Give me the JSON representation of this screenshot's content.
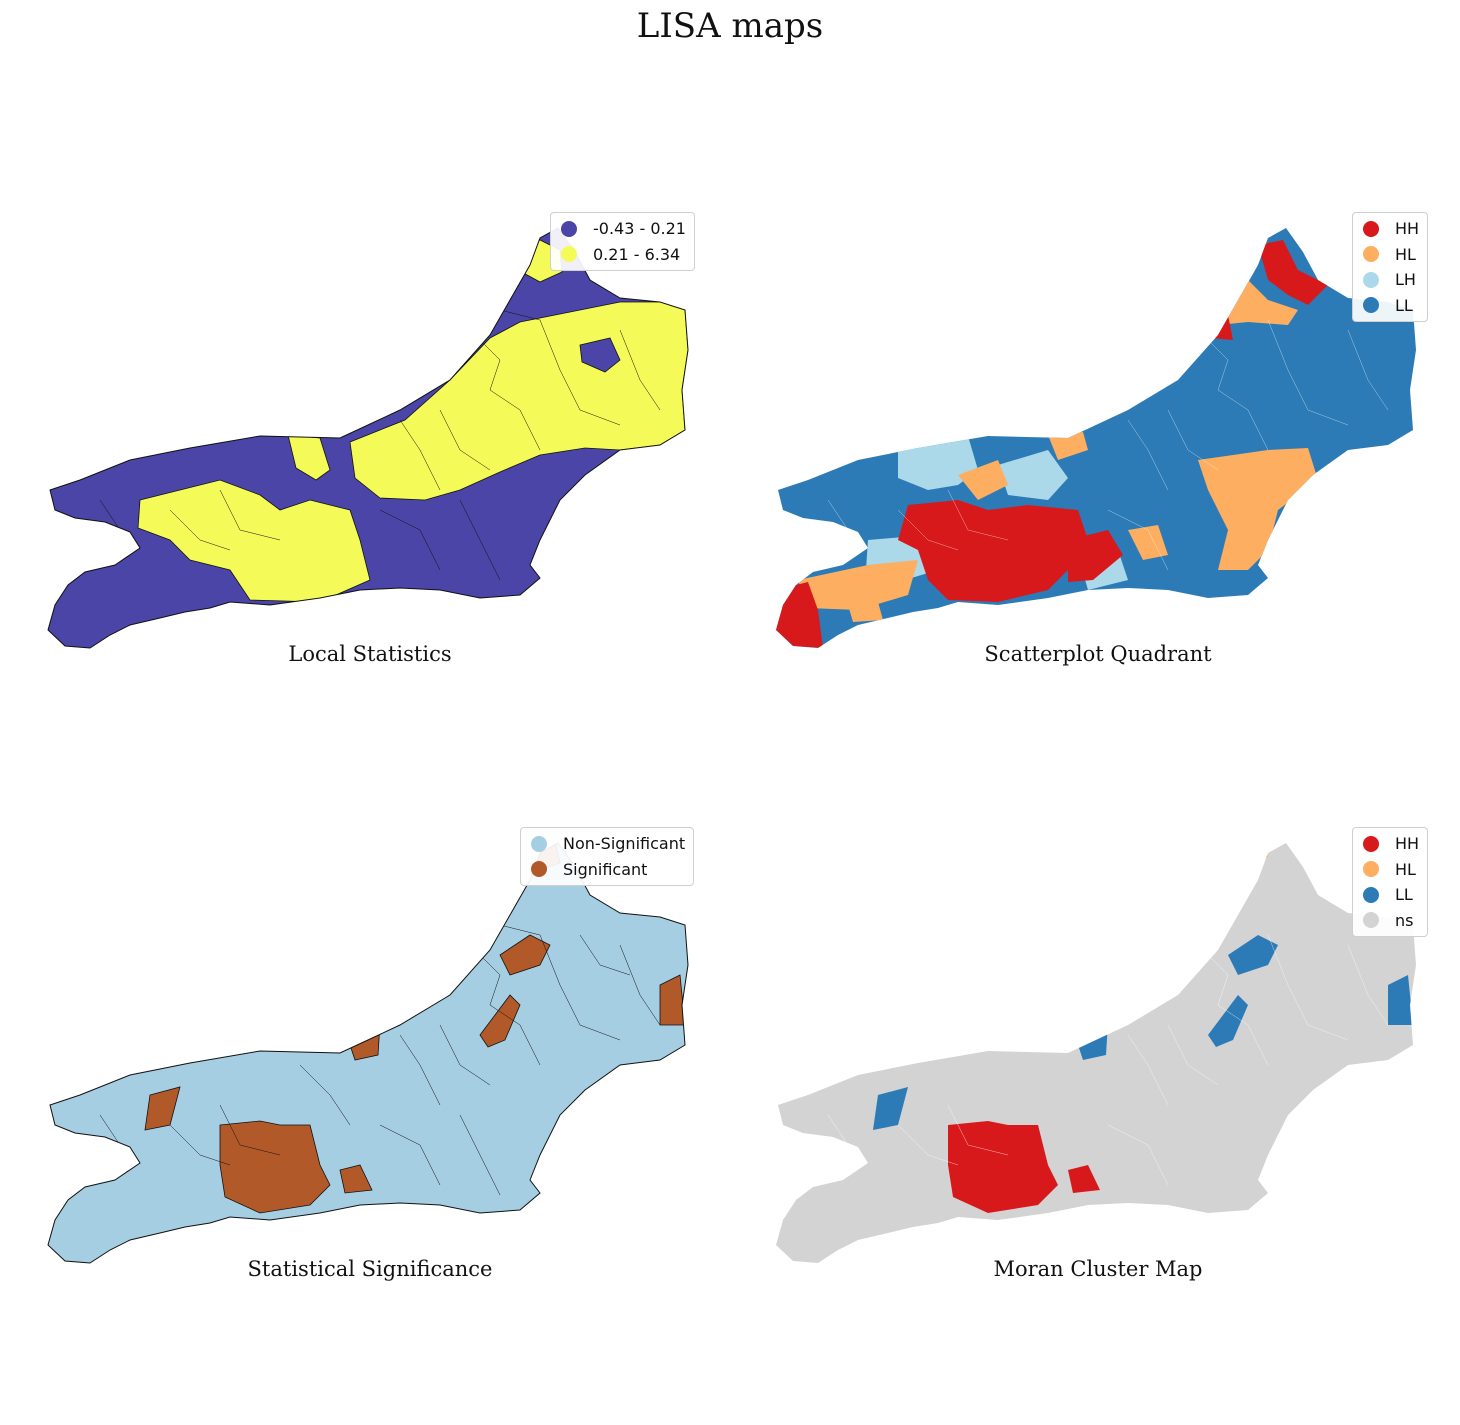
{
  "title": "LISA maps",
  "colors": {
    "ns": "#d3d3d3",
    "hh": "#d7191c",
    "hl": "#fdae61",
    "lh": "#abd9e9",
    "ll": "#2c7bb6",
    "low_stat": "#4a45a6",
    "high_stat": "#f4fa58",
    "non_sig": "#a6cee3",
    "sig": "#b15928"
  },
  "panels": [
    {
      "caption": "Local Statistics",
      "legend": [
        {
          "label": "-0.43 - 0.21",
          "color": "#4a45a6"
        },
        {
          "label": "0.21 - 6.34",
          "color": "#f4fa58"
        }
      ]
    },
    {
      "caption": "Scatterplot Quadrant",
      "legend": [
        {
          "label": "HH",
          "color": "#d7191c"
        },
        {
          "label": "HL",
          "color": "#fdae61"
        },
        {
          "label": "LH",
          "color": "#abd9e9"
        },
        {
          "label": "LL",
          "color": "#2c7bb6"
        }
      ]
    },
    {
      "caption": "Statistical Significance",
      "legend": [
        {
          "label": "Non-Significant",
          "color": "#a6cee3"
        },
        {
          "label": "Significant",
          "color": "#b15928"
        }
      ]
    },
    {
      "caption": "Moran Cluster Map",
      "legend": [
        {
          "label": "HH",
          "color": "#d7191c"
        },
        {
          "label": "HL",
          "color": "#fdae61"
        },
        {
          "label": "LL",
          "color": "#2c7bb6"
        },
        {
          "label": "ns",
          "color": "#d3d3d3"
        }
      ]
    }
  ]
}
